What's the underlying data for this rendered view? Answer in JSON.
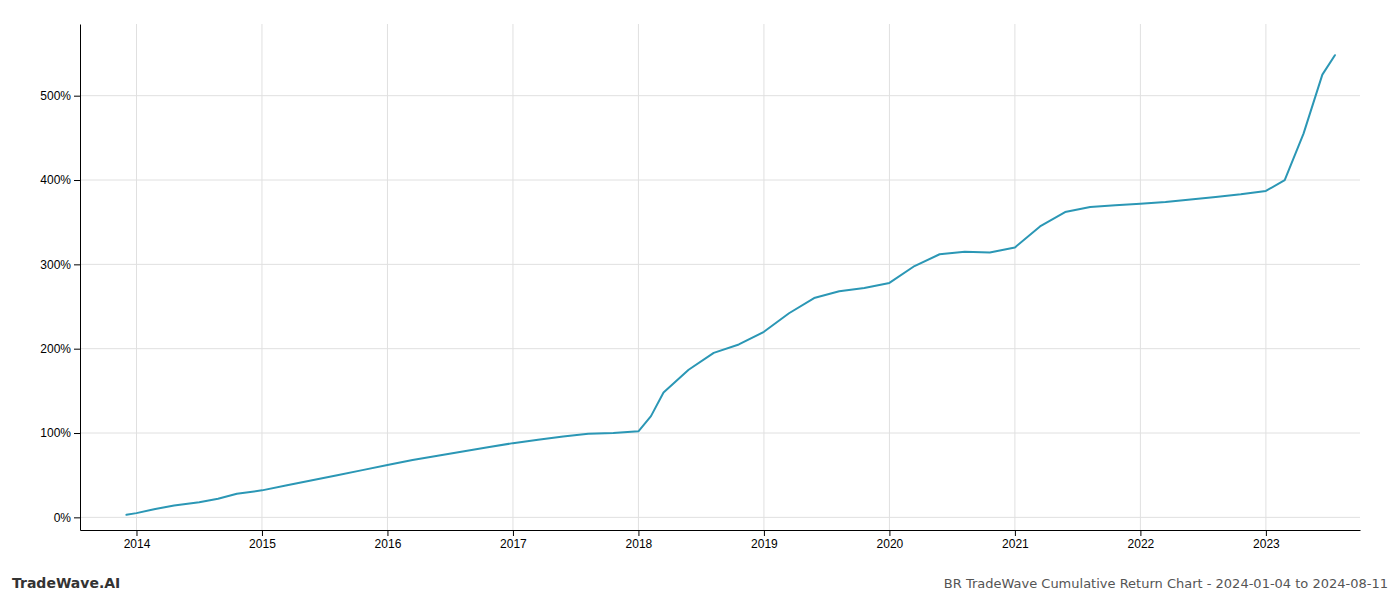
{
  "chart_data": {
    "type": "line",
    "title": "BR TradeWave Cumulative Return Chart - 2024-01-04 to 2024-08-11",
    "annotations": [
      "TradeWave.AI"
    ],
    "color": "#2b97b5",
    "grid": true,
    "x": [
      2013.92,
      2014.0,
      2014.15,
      2014.3,
      2014.5,
      2014.65,
      2014.8,
      2015.0,
      2015.2,
      2015.4,
      2015.6,
      2015.8,
      2016.0,
      2016.2,
      2016.4,
      2016.6,
      2016.8,
      2017.0,
      2017.2,
      2017.4,
      2017.6,
      2017.8,
      2018.0,
      2018.1,
      2018.2,
      2018.4,
      2018.6,
      2018.8,
      2019.0,
      2019.2,
      2019.4,
      2019.6,
      2019.8,
      2020.0,
      2020.2,
      2020.4,
      2020.6,
      2020.8,
      2021.0,
      2021.2,
      2021.4,
      2021.6,
      2021.8,
      2022.0,
      2022.2,
      2022.4,
      2022.6,
      2022.8,
      2023.0,
      2023.15,
      2023.3,
      2023.45,
      2023.55
    ],
    "values": [
      3,
      5,
      10,
      14,
      18,
      22,
      28,
      32,
      38,
      44,
      50,
      56,
      62,
      68,
      73,
      78,
      83,
      88,
      92,
      96,
      99,
      100,
      102,
      120,
      148,
      175,
      195,
      205,
      220,
      242,
      260,
      268,
      272,
      278,
      298,
      312,
      315,
      314,
      320,
      345,
      362,
      368,
      370,
      372,
      374,
      377,
      380,
      383,
      387,
      400,
      455,
      525,
      548
    ],
    "xlim": [
      2013.55,
      2023.75
    ],
    "ylim": [
      -15,
      585
    ],
    "xticks": [
      2014,
      2015,
      2016,
      2017,
      2018,
      2019,
      2020,
      2021,
      2022,
      2023
    ],
    "yticks": [
      {
        "value": 0,
        "label": "0%"
      },
      {
        "value": 100,
        "label": "100%"
      },
      {
        "value": 200,
        "label": "200%"
      },
      {
        "value": 300,
        "label": "300%"
      },
      {
        "value": 400,
        "label": "400%"
      },
      {
        "value": 500,
        "label": "500%"
      }
    ]
  }
}
